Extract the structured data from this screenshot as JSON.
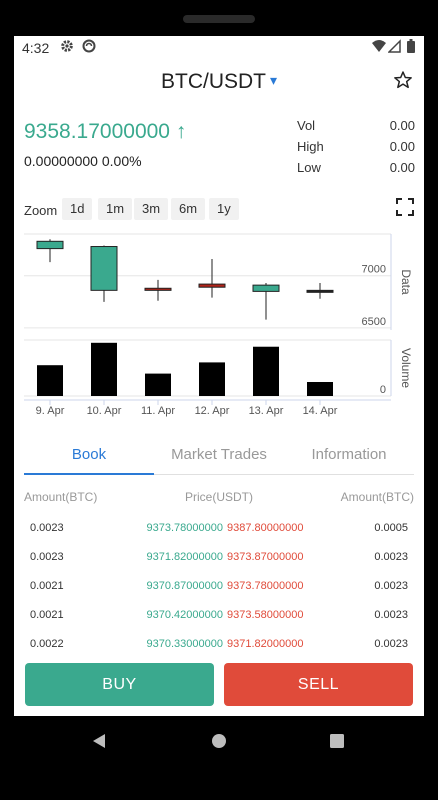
{
  "status_bar": {
    "time": "4:32",
    "icons": [
      "gear-icon",
      "sync-icon",
      "wifi-icon",
      "signal-icon",
      "battery-icon"
    ]
  },
  "header": {
    "pair": "BTC/USDT",
    "chevron": "▾",
    "favorite_icon": "star-outline-icon"
  },
  "ticker": {
    "last_price": "9358.17000000",
    "direction_arrow": "↑",
    "change": "0.00000000 0.00%",
    "stats": [
      {
        "label": "Vol",
        "value": "0.00"
      },
      {
        "label": "High",
        "value": "0.00"
      },
      {
        "label": "Low",
        "value": "0.00"
      }
    ]
  },
  "zoom": {
    "label": "Zoom",
    "options": [
      "1d",
      "1m",
      "3m",
      "6m",
      "1y"
    ],
    "fullscreen_icon": "fullscreen-icon"
  },
  "chart_data": {
    "type": "candlestick",
    "x": [
      "9. Apr",
      "10. Apr",
      "11. Apr",
      "12. Apr",
      "13. Apr",
      "14. Apr"
    ],
    "price_axis_label": "Data",
    "price_ticks": [
      7000,
      6500
    ],
    "candles": [
      {
        "x": "9. Apr",
        "open": 7260,
        "close": 7330,
        "high": 7350,
        "low": 7130,
        "color": "#3aa98e"
      },
      {
        "x": "10. Apr",
        "open": 6860,
        "close": 7280,
        "high": 7290,
        "low": 6750,
        "color": "#3aa98e"
      },
      {
        "x": "11. Apr",
        "open": 6880,
        "close": 6860,
        "high": 6960,
        "low": 6760,
        "color": "#b0241a"
      },
      {
        "x": "12. Apr",
        "open": 6920,
        "close": 6890,
        "high": 7160,
        "low": 6790,
        "color": "#b0241a"
      },
      {
        "x": "13. Apr",
        "open": 6850,
        "close": 6910,
        "high": 6930,
        "low": 6580,
        "color": "#3aa98e"
      },
      {
        "x": "14. Apr",
        "open": 6860,
        "close": 6850,
        "high": 6930,
        "low": 6780,
        "color": "#222222"
      }
    ],
    "volume_axis_label": "Volume",
    "volume_ticks": [
      0
    ],
    "volume_relative": [
      0.55,
      0.95,
      0.4,
      0.6,
      0.88,
      0.25
    ],
    "grid": true
  },
  "tabs": [
    {
      "label": "Book",
      "active": true
    },
    {
      "label": "Market Trades",
      "active": false
    },
    {
      "label": "Information",
      "active": false
    }
  ],
  "book": {
    "headers": {
      "bid_amount": "Amount(BTC)",
      "price": "Price(USDT)",
      "ask_amount": "Amount(BTC)"
    },
    "rows": [
      {
        "bid_amount": "0.0023",
        "bid_price": "9373.78000000",
        "ask_price": "9387.80000000",
        "ask_amount": "0.0005"
      },
      {
        "bid_amount": "0.0023",
        "bid_price": "9371.82000000",
        "ask_price": "9373.87000000",
        "ask_amount": "0.0023"
      },
      {
        "bid_amount": "0.0021",
        "bid_price": "9370.87000000",
        "ask_price": "9373.78000000",
        "ask_amount": "0.0023"
      },
      {
        "bid_amount": "0.0021",
        "bid_price": "9370.42000000",
        "ask_price": "9373.58000000",
        "ask_amount": "0.0023"
      },
      {
        "bid_amount": "0.0022",
        "bid_price": "9370.33000000",
        "ask_price": "9371.82000000",
        "ask_amount": "0.0023"
      }
    ]
  },
  "actions": {
    "buy": "BUY",
    "sell": "SELL",
    "buy_color": "#3aa98e",
    "sell_color": "#e04b3a"
  },
  "nav_bar": {
    "icons": [
      "back-icon",
      "home-icon",
      "recents-icon"
    ]
  }
}
